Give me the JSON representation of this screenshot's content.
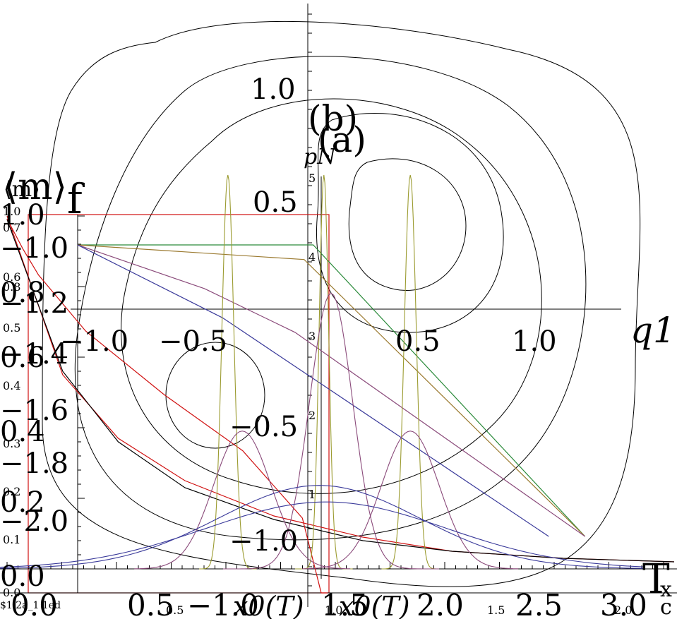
{
  "chart_data": [
    {
      "panel": "(b)",
      "type": "line",
      "title": "(b)",
      "xlabel": "q1",
      "ylabel": "",
      "xlim": [
        -1.3,
        1.35
      ],
      "ylim": [
        -1.45,
        1.3
      ],
      "x_ticks": [
        "−1.0",
        "−0.5",
        "0.5",
        "1.0"
      ],
      "y_ticks": [
        "1.0",
        "0.5",
        "−0.5",
        "−1.0"
      ],
      "contours": [
        {
          "cx": 0.0,
          "cy": 0.0,
          "level": 1
        },
        {
          "cx": 0.0,
          "cy": 0.0,
          "level": 2
        },
        {
          "cx": 0.0,
          "cy": 0.0,
          "level": 3
        },
        {
          "cx": 0.0,
          "cy": 0.0,
          "level": 4
        }
      ]
    },
    {
      "panel": "(a)",
      "type": "line",
      "title": "(a)",
      "xlabel": "x",
      "ylabel": "pN",
      "x_tick_values": [
        "−1.0",
        "−0.5",
        "0.0",
        "0.5",
        "1.0"
      ],
      "y_tick_values": [
        "1",
        "2",
        "3",
        "4",
        "5"
      ],
      "ylim": [
        0,
        5
      ],
      "series": [
        {
          "color": "#9b9b30",
          "x": [
            -0.7,
            -0.62,
            -0.58,
            -0.5,
            -0.45,
            -0.42,
            -0.35,
            0.0,
            0.02,
            0.05,
            0.1,
            0.35,
            0.38,
            0.42,
            0.48
          ],
          "values": [
            0,
            0,
            5,
            5,
            5,
            0,
            0,
            0,
            5,
            5,
            0,
            0,
            5,
            5,
            0
          ]
        },
        {
          "color": "#8a4a7a",
          "x": [
            -0.8,
            -0.6,
            -0.5,
            -0.4,
            -0.2,
            0,
            0.1,
            0.2,
            0.3,
            0.5,
            0.7
          ],
          "values": [
            0,
            1.1,
            2.0,
            1.3,
            0.1,
            3.3,
            2.8,
            0.2,
            0.9,
            1.9,
            0.1
          ]
        },
        {
          "color": "#3a3a9a",
          "x": [
            -1.3,
            -0.6,
            0,
            0.6,
            1.3
          ],
          "values": [
            0.05,
            0.6,
            1.15,
            0.6,
            0.05
          ]
        }
      ]
    },
    {
      "panel": "f",
      "type": "line",
      "title": "",
      "xlabel": "T",
      "ylabel": "f",
      "xlim": [
        0.0,
        3.0
      ],
      "ylim": [
        -2.0,
        -1.0
      ],
      "x_ticks": [
        "0.0",
        "0.5",
        "1.0",
        "1.5",
        "2.0",
        "2.5",
        "3.0"
      ],
      "y_ticks": [
        "−1.0",
        "−1.2",
        "−1.4",
        "−1.6",
        "−1.8",
        "−2.0"
      ],
      "series": [
        {
          "color": "#2a8a3a",
          "x": [
            0.0,
            1.3,
            2.8
          ],
          "values": [
            -1.0,
            -1.0,
            -2.0
          ]
        },
        {
          "color": "#9b7a30",
          "x": [
            0.0,
            1.25,
            2.8
          ],
          "values": [
            -1.0,
            -1.05,
            -2.0
          ]
        },
        {
          "color": "#8a4a7a",
          "x": [
            0.0,
            0.7,
            1.2,
            2.8
          ],
          "values": [
            -1.0,
            -1.15,
            -1.3,
            -2.0
          ]
        },
        {
          "color": "#3a3a9a",
          "x": [
            0.0,
            0.8,
            2.6
          ],
          "values": [
            -1.0,
            -1.25,
            -2.0
          ]
        }
      ]
    },
    {
      "panel": "m",
      "type": "line",
      "title": "",
      "xlabel": "T",
      "ylabel": "⟨m⟩",
      "xlim": [
        0.0,
        3.0
      ],
      "ylim": [
        0.0,
        1.0
      ],
      "x_ticks": [
        "0.0",
        "0.5",
        "1.0",
        "1.5",
        "2.0",
        "2.5",
        "3.0"
      ],
      "y_ticks": [
        "1.0",
        "0.8",
        "0.6",
        "0.4",
        "0.2",
        "0.0"
      ],
      "series": [
        {
          "color": "#d01010",
          "x": [
            0.0,
            0.25,
            0.5,
            0.8,
            1.2,
            1.6,
            2.0,
            2.5,
            3.0
          ],
          "values": [
            1.0,
            0.55,
            0.37,
            0.25,
            0.15,
            0.09,
            0.05,
            0.03,
            0.02
          ]
        },
        {
          "color": "#000000",
          "x": [
            0.0,
            0.25,
            0.5,
            0.8,
            1.2,
            1.6,
            2.0,
            2.5,
            3.0
          ],
          "values": [
            0.99,
            0.56,
            0.36,
            0.23,
            0.14,
            0.08,
            0.05,
            0.03,
            0.02
          ]
        }
      ]
    },
    {
      "panel": "c",
      "type": "line",
      "title": "",
      "xlabel": "x0(T)",
      "ylabel": "",
      "series": [
        {
          "color": "#d01010",
          "x": [
            -1.0,
            -0.95,
            -0.9,
            -0.75,
            -0.5,
            -0.25,
            -0.06,
            0.0,
            0.02
          ],
          "values": [
            1.0,
            0.92,
            0.85,
            0.7,
            0.53,
            0.38,
            0.2,
            0.0,
            0.0
          ]
        }
      ]
    }
  ],
  "labels": {
    "top_right_T": "T",
    "x_lower_right": "x",
    "c_label": "c",
    "bottom_left": "$1 2a_1 1ed",
    "x0_label_a": "x0(T)",
    "x0_label_b": "x0(T)",
    "pN": "pN",
    "q1": "q1",
    "m_small": "⟨m⟩",
    "m_big": "⟨m⟩",
    "f": "f",
    "b": "(b)",
    "a": "(a)",
    "zero_big": "0.0",
    "minus_sign": "−",
    "small_ticks_left": [
      "1.0",
      "0.7",
      "0.8",
      "0.6",
      "0.5",
      "0.4",
      "0.3",
      "0.2",
      "0.1",
      "0.0"
    ],
    "bottom_small": [
      "0.5",
      "1.0",
      "1.5",
      "2.0"
    ],
    "bottom_big_a": "0.0",
    "bottom_big_b": "0.5",
    "bottom_big_c": "−1.0",
    "bottom_big_d": "1.5",
    "bottom_big_e": "2.0",
    "bottom_big_f": "2.5",
    "bottom_big_g": "3.0",
    "minus_one_big": "−1.0"
  }
}
